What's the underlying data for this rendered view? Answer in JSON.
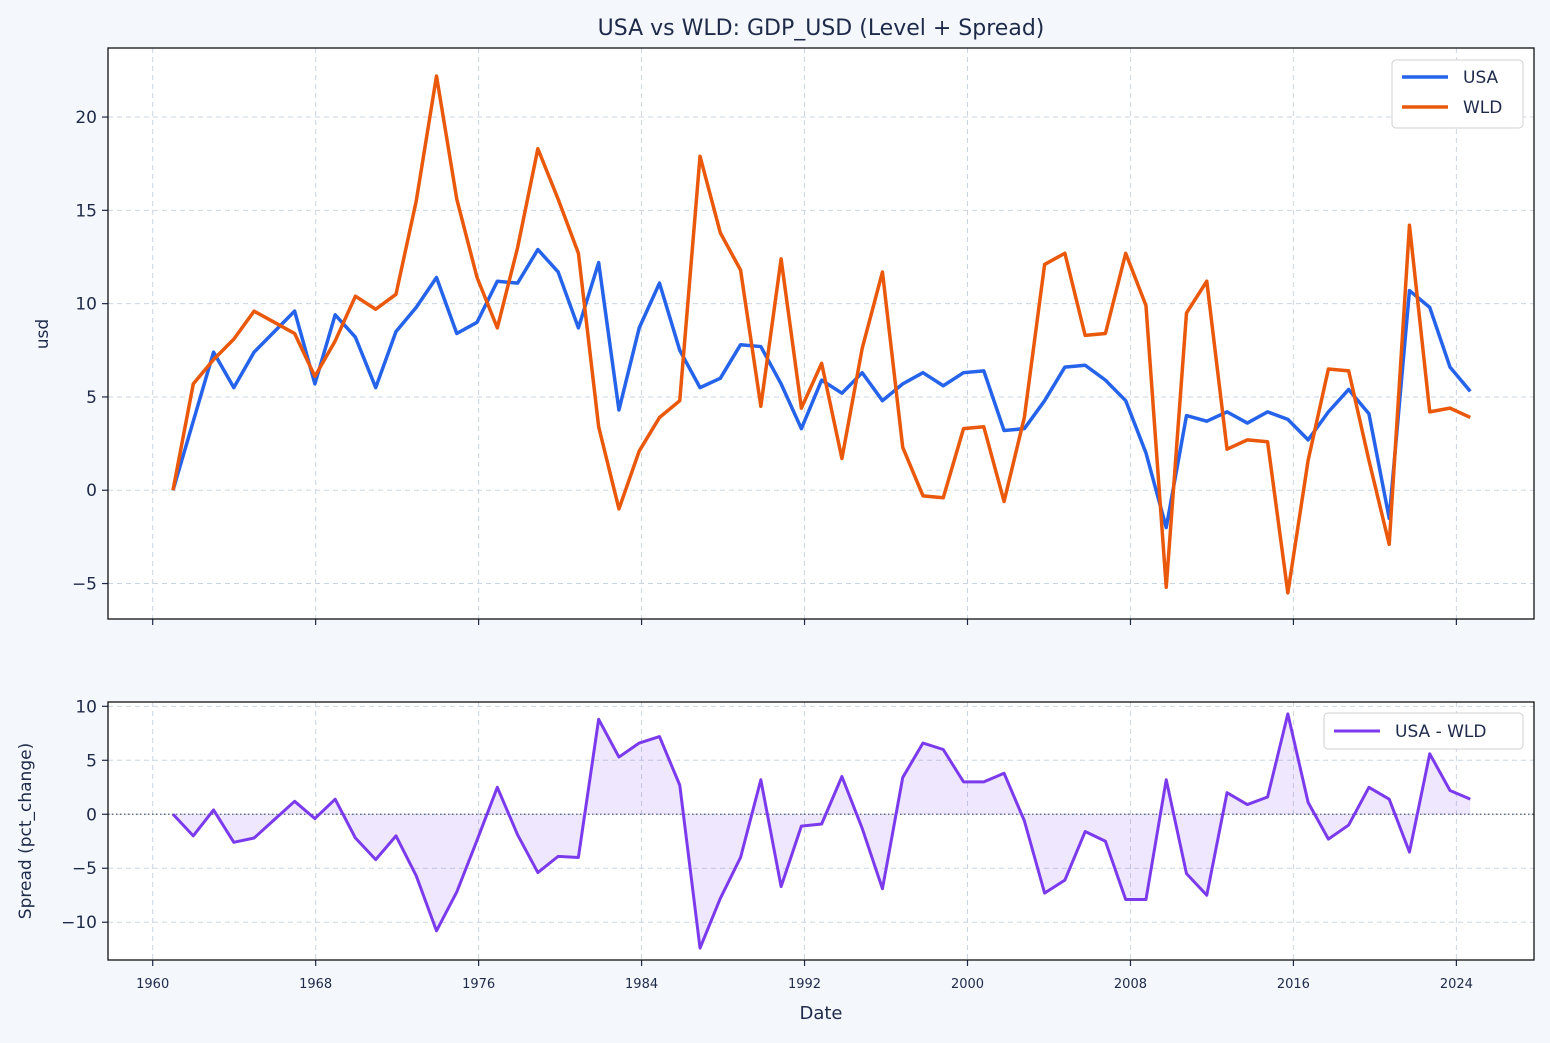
{
  "chart_data": [
    {
      "type": "line",
      "title": "USA vs WLD: GDP_USD (Level + Spread)",
      "xlabel": "",
      "ylabel": "usd",
      "ylim": [
        -6.9,
        23.7
      ],
      "xlim": [
        1957.8,
        2027.9
      ],
      "yticks": [
        -5,
        0,
        5,
        10,
        15,
        20
      ],
      "grid": true,
      "legend": "top-right",
      "x": [
        1961,
        1962,
        1963,
        1964,
        1965,
        1966,
        1967,
        1968,
        1969,
        1970,
        1971,
        1972,
        1973,
        1974,
        1975,
        1976,
        1977,
        1978,
        1979,
        1980,
        1981,
        1982,
        1983,
        1984,
        1985,
        1986,
        1987,
        1988,
        1989,
        1990,
        1991,
        1992,
        1993,
        1994,
        1995,
        1996,
        1997,
        1998,
        1999,
        2000,
        2001,
        2002,
        2003,
        2004,
        2005,
        2006,
        2007,
        2008,
        2009,
        2010,
        2011,
        2012,
        2013,
        2014,
        2015,
        2016,
        2017,
        2018,
        2019,
        2020,
        2021,
        2022,
        2023,
        2024,
        2025
      ],
      "series": [
        {
          "name": "USA",
          "color": "#2563eb",
          "values": [
            0,
            3.7,
            7.4,
            5.5,
            7.4,
            8.5,
            9.6,
            5.7,
            9.4,
            8.2,
            5.5,
            8.5,
            9.8,
            11.4,
            8.4,
            9.0,
            11.2,
            11.1,
            12.9,
            11.7,
            8.7,
            12.2,
            4.3,
            8.7,
            11.1,
            7.5,
            5.5,
            6.0,
            7.8,
            7.7,
            5.7,
            3.3,
            5.9,
            5.2,
            6.3,
            4.8,
            5.7,
            6.3,
            5.6,
            6.3,
            6.4,
            3.2,
            3.3,
            4.8,
            6.6,
            6.7,
            5.9,
            4.8,
            2.0,
            -2.0,
            4.0,
            3.7,
            4.2,
            3.6,
            4.2,
            3.8,
            2.7,
            4.2,
            5.4,
            4.1,
            -1.5,
            10.7,
            9.8,
            6.6,
            5.3
          ]
        },
        {
          "name": "WLD",
          "color": "#ea580c",
          "values": [
            0,
            5.7,
            7.0,
            8.1,
            9.6,
            9.0,
            8.4,
            6.1,
            8.0,
            10.4,
            9.7,
            10.5,
            15.5,
            22.2,
            15.6,
            11.4,
            8.7,
            13.0,
            18.3,
            15.6,
            12.7,
            3.4,
            -1.0,
            2.1,
            3.9,
            4.8,
            17.9,
            13.8,
            11.8,
            4.5,
            12.4,
            4.4,
            6.8,
            1.7,
            7.6,
            11.7,
            2.3,
            -0.3,
            -0.4,
            3.3,
            3.4,
            -0.6,
            3.9,
            12.1,
            12.7,
            8.3,
            8.4,
            12.7,
            9.9,
            -5.2,
            9.5,
            11.2,
            2.2,
            2.7,
            2.6,
            -5.5,
            1.6,
            6.5,
            6.4,
            1.6,
            -2.9,
            14.2,
            4.2,
            4.4,
            3.9
          ]
        }
      ]
    },
    {
      "type": "area",
      "xlabel": "Date",
      "ylabel": "Spread (pct_change)",
      "ylim": [
        -13.5,
        10.4
      ],
      "yticks": [
        -10,
        -5,
        0,
        5,
        10
      ],
      "xticks": [
        1960,
        1968,
        1976,
        1984,
        1992,
        2000,
        2008,
        2016,
        2024
      ],
      "grid": true,
      "legend": "top-right",
      "zero_line": true,
      "series": [
        {
          "name": "USA - WLD",
          "color": "#7c3aed",
          "values": [
            0,
            -2.0,
            0.4,
            -2.6,
            -2.2,
            -0.5,
            1.2,
            -0.4,
            1.4,
            -2.2,
            -4.2,
            -2.0,
            -5.7,
            -10.8,
            -7.2,
            -2.4,
            2.5,
            -1.9,
            -5.4,
            -3.9,
            -4.0,
            8.8,
            5.3,
            6.6,
            7.2,
            2.7,
            -12.4,
            -7.8,
            -4.0,
            3.2,
            -6.7,
            -1.1,
            -0.9,
            3.5,
            -1.3,
            -6.9,
            3.4,
            6.6,
            6.0,
            3.0,
            3.0,
            3.8,
            -0.6,
            -7.3,
            -6.1,
            -1.6,
            -2.5,
            -7.9,
            -7.9,
            3.2,
            -5.5,
            -7.5,
            2.0,
            0.9,
            1.6,
            9.3,
            1.1,
            -2.3,
            -1.0,
            2.5,
            1.4,
            -3.5,
            5.6,
            2.2,
            1.4
          ]
        }
      ]
    }
  ]
}
